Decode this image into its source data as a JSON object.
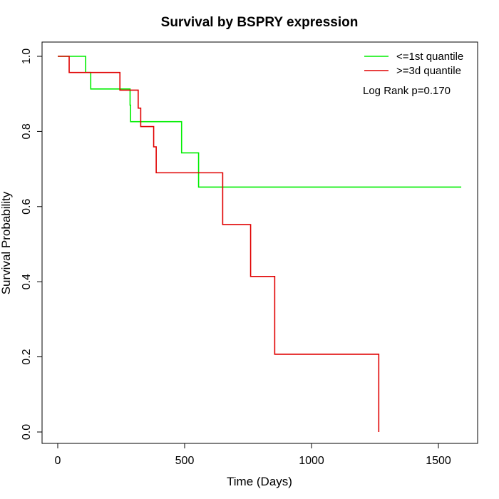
{
  "chart_data": {
    "type": "line",
    "title": "Survival by BSPRY expression",
    "xlabel": "Time (Days)",
    "ylabel": "Survival Probability",
    "xlim": [
      0,
      1600
    ],
    "ylim": [
      0,
      1.0
    ],
    "x_ticks": [
      0,
      500,
      1000,
      1500
    ],
    "y_ticks": [
      0.0,
      0.2,
      0.4,
      0.6,
      0.8,
      1.0
    ],
    "x_tick_labels": [
      "0",
      "500",
      "1000",
      "1500"
    ],
    "y_tick_labels": [
      "0.0",
      "0.2",
      "0.4",
      "0.6",
      "0.8",
      "1.0"
    ],
    "grid": false,
    "legend_position": "top-right",
    "annotation": "Log Rank p=0.170",
    "series": [
      {
        "name": "<=1st quantile",
        "color": "#00ee00",
        "step": true,
        "x": [
          0,
          110,
          130,
          285,
          287,
          488,
          555,
          1590
        ],
        "y": [
          1.0,
          0.957,
          0.913,
          0.87,
          0.826,
          0.743,
          0.652,
          0.652
        ]
      },
      {
        "name": ">=3d quantile",
        "color": "#e00000",
        "step": true,
        "x": [
          0,
          45,
          245,
          317,
          327,
          378,
          388,
          650,
          760,
          855,
          1265,
          1265
        ],
        "y": [
          1.0,
          0.957,
          0.91,
          0.862,
          0.813,
          0.759,
          0.69,
          0.552,
          0.414,
          0.207,
          0.207,
          0.0
        ]
      }
    ]
  }
}
